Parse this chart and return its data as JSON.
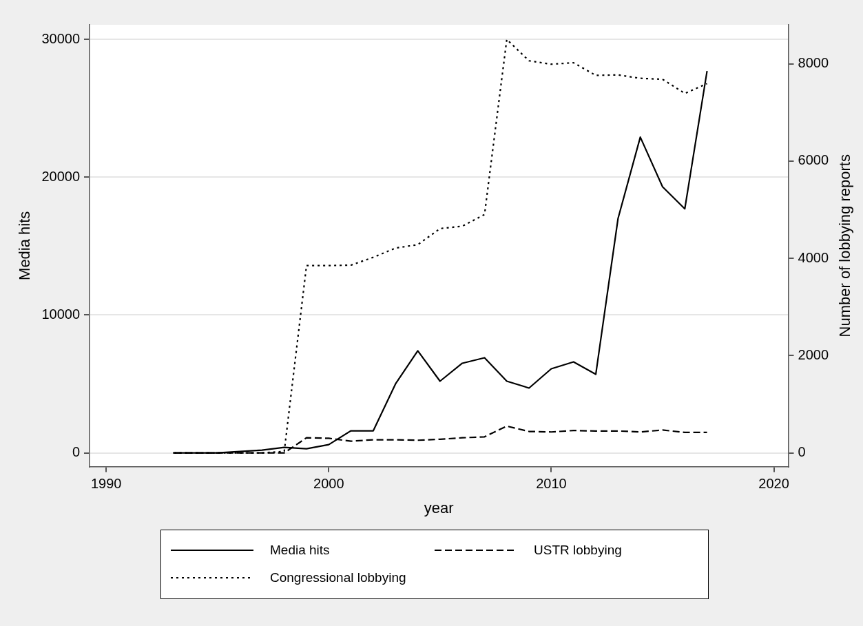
{
  "chart_data": {
    "type": "line",
    "xlabel": "year",
    "ylabel": "Media hits",
    "y2label": "Number of lobbying reports",
    "x": [
      1993,
      1994,
      1995,
      1996,
      1997,
      1998,
      1999,
      2000,
      2001,
      2002,
      2003,
      2004,
      2005,
      2006,
      2007,
      2008,
      2009,
      2010,
      2011,
      2012,
      2013,
      2014,
      2015,
      2016,
      2017
    ],
    "series": [
      {
        "name": "Media hits",
        "color": "#000000",
        "line_style": "solid",
        "values": [
          0,
          0,
          0,
          100,
          200,
          400,
          300,
          600,
          1600,
          1600,
          5000,
          7400,
          5200,
          6500,
          6900,
          5200,
          4700,
          6100,
          6600,
          5700,
          17000,
          22900,
          19300,
          17700,
          27700
        ]
      },
      {
        "name": "USTR lobbying",
        "color": "#000000",
        "line_style": "dashed",
        "axis": "y2",
        "values": [
          0,
          0,
          0,
          0,
          0,
          0,
          310,
          300,
          240,
          270,
          270,
          260,
          280,
          310,
          330,
          550,
          440,
          430,
          460,
          450,
          450,
          430,
          470,
          420,
          420
        ]
      },
      {
        "name": "Congressional lobbying",
        "color": "#000000",
        "line_style": "dotted",
        "axis": "y2",
        "values": [
          0,
          0,
          0,
          0,
          0,
          30,
          3850,
          3850,
          3860,
          4020,
          4210,
          4280,
          4610,
          4660,
          4900,
          8500,
          8060,
          7990,
          8020,
          7760,
          7770,
          7700,
          7680,
          7390,
          7590
        ]
      }
    ],
    "xlim": [
      1989.25,
      2020.65
    ],
    "xticks": [
      1990,
      2000,
      2010,
      2020
    ],
    "ylim": [
      -1000,
      31050
    ],
    "yticks": [
      0,
      10000,
      20000,
      30000
    ],
    "y2lim": [
      -283,
      8800
    ],
    "y2ticks": [
      0,
      2000,
      4000,
      6000,
      8000
    ],
    "grid": "y",
    "legend": "bottom",
    "marker": "none"
  }
}
